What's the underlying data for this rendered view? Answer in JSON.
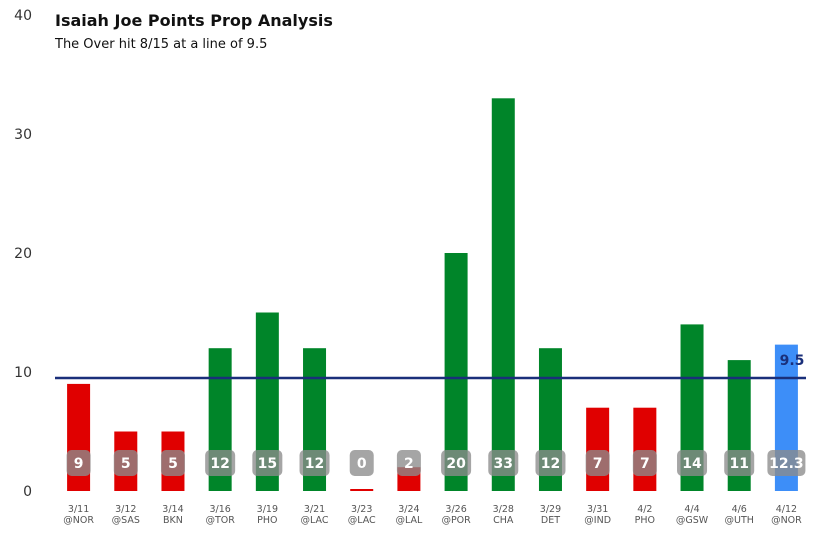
{
  "chart_data": {
    "type": "bar",
    "title": "Isaiah Joe Points Prop Analysis",
    "subtitle": "The Over hit 8/15 at a line of 9.5",
    "ylim": [
      0,
      40
    ],
    "yticks": [
      0,
      10,
      20,
      30,
      40
    ],
    "line": {
      "value": 9.5,
      "label": "9.5",
      "color": "#1a2f7a"
    },
    "colors": {
      "over": "#008529",
      "under": "#e00000",
      "projection": "#3d8ef8",
      "label_bg": "#8c8c8c"
    },
    "categories": [
      {
        "date": "3/11",
        "opp": "@NOR",
        "value": 9,
        "label": "9",
        "status": "under"
      },
      {
        "date": "3/12",
        "opp": "@SAS",
        "value": 5,
        "label": "5",
        "status": "under"
      },
      {
        "date": "3/14",
        "opp": "BKN",
        "value": 5,
        "label": "5",
        "status": "under"
      },
      {
        "date": "3/16",
        "opp": "@TOR",
        "value": 12,
        "label": "12",
        "status": "over"
      },
      {
        "date": "3/19",
        "opp": "PHO",
        "value": 15,
        "label": "15",
        "status": "over"
      },
      {
        "date": "3/21",
        "opp": "@LAC",
        "value": 12,
        "label": "12",
        "status": "over"
      },
      {
        "date": "3/23",
        "opp": "@LAC",
        "value": 0,
        "label": "0",
        "status": "under"
      },
      {
        "date": "3/24",
        "opp": "@LAL",
        "value": 2,
        "label": "2",
        "status": "under"
      },
      {
        "date": "3/26",
        "opp": "@POR",
        "value": 20,
        "label": "20",
        "status": "over"
      },
      {
        "date": "3/28",
        "opp": "CHA",
        "value": 33,
        "label": "33",
        "status": "over"
      },
      {
        "date": "3/29",
        "opp": "DET",
        "value": 12,
        "label": "12",
        "status": "over"
      },
      {
        "date": "3/31",
        "opp": "@IND",
        "value": 7,
        "label": "7",
        "status": "under"
      },
      {
        "date": "4/2",
        "opp": "PHO",
        "value": 7,
        "label": "7",
        "status": "under"
      },
      {
        "date": "4/4",
        "opp": "@GSW",
        "value": 14,
        "label": "14",
        "status": "over"
      },
      {
        "date": "4/6",
        "opp": "@UTH",
        "value": 11,
        "label": "11",
        "status": "over"
      },
      {
        "date": "4/12",
        "opp": "@NOR",
        "value": 12.3,
        "label": "12.3",
        "status": "projection"
      }
    ]
  }
}
